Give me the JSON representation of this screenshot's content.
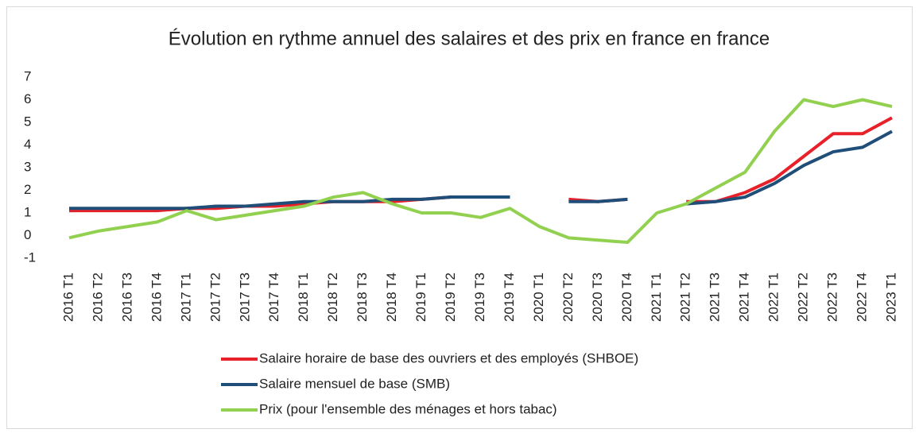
{
  "chart_data": {
    "type": "line",
    "title": "Évolution en rythme annuel des salaires et des prix en france en france",
    "categories": [
      "2016 T1",
      "2016 T2",
      "2016 T3",
      "2016 T4",
      "2017 T1",
      "2017 T2",
      "2017 T3",
      "2017 T4",
      "2018 T1",
      "2018 T2",
      "2018 T3",
      "2018 T4",
      "2019 T1",
      "2019 T2",
      "2019 T3",
      "2019 T4",
      "2020 T1",
      "2020 T2",
      "2020 T3",
      "2020 T4",
      "2021 T1",
      "2021 T2",
      "2021 T3",
      "2021 T4",
      "2022 T1",
      "2022 T2",
      "2022 T3",
      "2022 T4",
      "2023 T1"
    ],
    "series": [
      {
        "name": "Salaire horaire de base des ouvriers et des employés (SHBOE)",
        "color": "#e8202a",
        "values": [
          1.1,
          1.1,
          1.1,
          1.1,
          1.2,
          1.2,
          1.3,
          1.3,
          1.4,
          1.5,
          1.5,
          1.5,
          1.6,
          1.7,
          1.7,
          1.7,
          null,
          1.6,
          1.5,
          1.6,
          null,
          1.5,
          1.5,
          1.9,
          2.5,
          3.5,
          4.5,
          4.5,
          5.2
        ]
      },
      {
        "name": "Salaire mensuel de base (SMB)",
        "color": "#1f4e79",
        "values": [
          1.2,
          1.2,
          1.2,
          1.2,
          1.2,
          1.3,
          1.3,
          1.4,
          1.5,
          1.5,
          1.5,
          1.6,
          1.6,
          1.7,
          1.7,
          1.7,
          null,
          1.5,
          1.5,
          1.6,
          null,
          1.4,
          1.5,
          1.7,
          2.3,
          3.1,
          3.7,
          3.9,
          4.6
        ]
      },
      {
        "name": "Prix (pour l'ensemble des ménages et hors tabac)",
        "color": "#92d050",
        "values": [
          -0.1,
          0.2,
          0.4,
          0.6,
          1.1,
          0.7,
          0.9,
          1.1,
          1.3,
          1.7,
          1.9,
          1.4,
          1.0,
          1.0,
          0.8,
          1.2,
          0.4,
          -0.1,
          -0.2,
          -0.3,
          1.0,
          1.4,
          2.1,
          2.8,
          4.6,
          6.0,
          5.7,
          6.0,
          5.7
        ]
      }
    ],
    "ylim": [
      -1,
      7
    ],
    "yticks": [
      -1,
      0,
      1,
      2,
      3,
      4,
      5,
      6,
      7
    ],
    "grid": false
  }
}
